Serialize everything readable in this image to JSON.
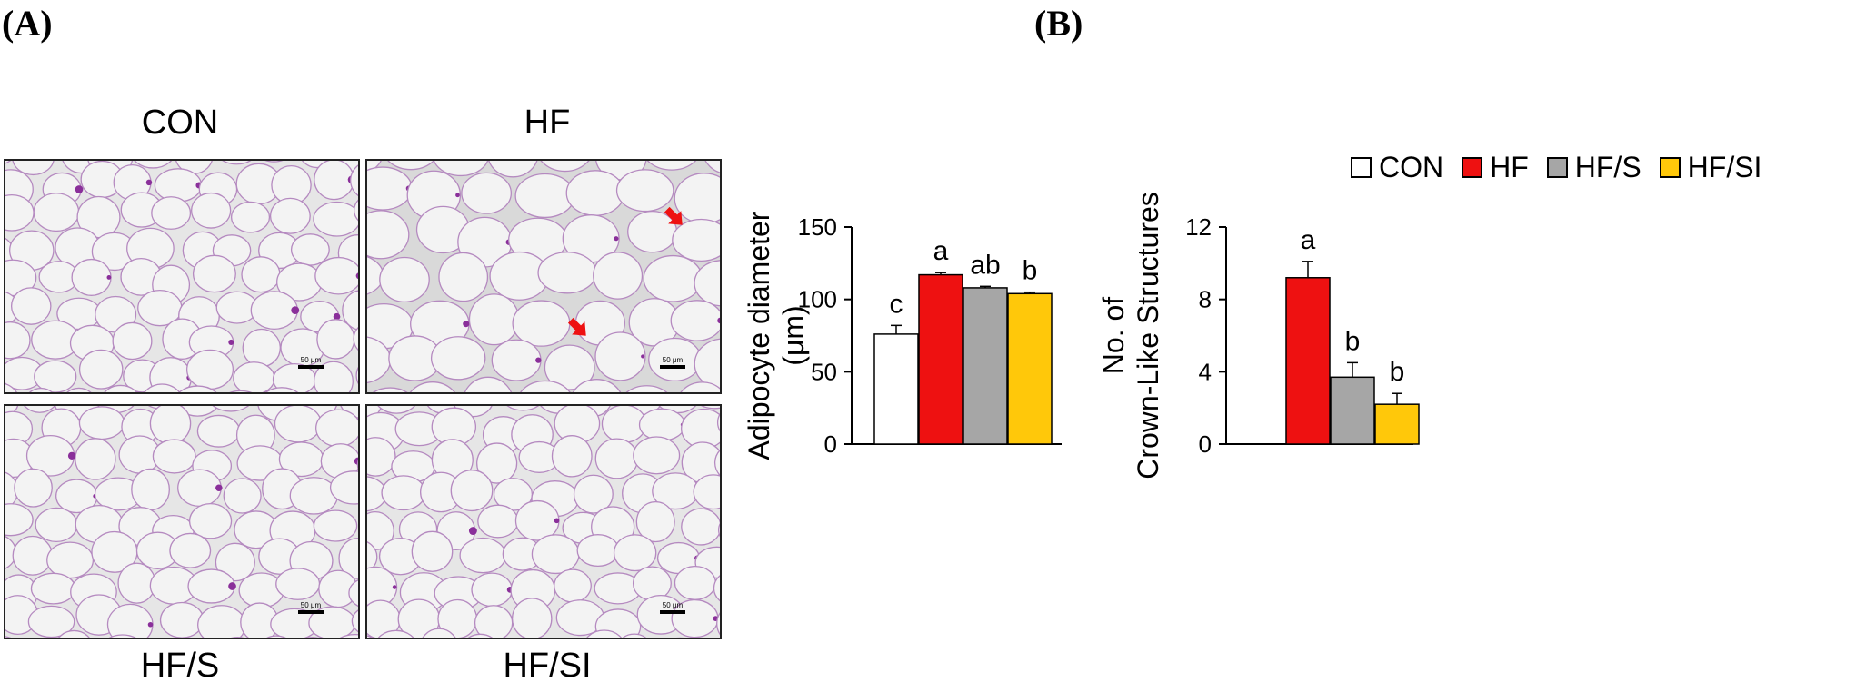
{
  "panels": {
    "a_label": "(A)",
    "b_label": "(B)"
  },
  "micrographs": [
    {
      "title": "CON",
      "scale": "50 μm"
    },
    {
      "title": "HF",
      "scale": "50 μm"
    },
    {
      "title": "HF/S",
      "scale": "50 μm"
    },
    {
      "title": "HF/SI",
      "scale": "50 μm"
    }
  ],
  "legend": [
    {
      "label": "CON",
      "color": "#ffffff"
    },
    {
      "label": "HF",
      "color": "#ee1111"
    },
    {
      "label": "HF/S",
      "color": "#a6a6a6"
    },
    {
      "label": "HF/SI",
      "color": "#ffc80a"
    }
  ],
  "chart_data": [
    {
      "type": "bar",
      "categories": [
        "CON",
        "HF",
        "HF/S",
        "HF/SI"
      ],
      "values": [
        76,
        117,
        108,
        104
      ],
      "errors": [
        6,
        1.5,
        1,
        1
      ],
      "letters": [
        "c",
        "a",
        "ab",
        "b"
      ],
      "colors": [
        "#ffffff",
        "#ee1111",
        "#a6a6a6",
        "#ffc80a"
      ],
      "ylabel_lines": [
        "Adipocyte diameter",
        "(μm)"
      ],
      "ylim": [
        0,
        150
      ],
      "yticks": [
        "0",
        "50",
        "100",
        "150"
      ]
    },
    {
      "type": "bar",
      "categories": [
        "CON",
        "HF",
        "HF/S",
        "HF/SI"
      ],
      "values": [
        0,
        9.2,
        3.7,
        2.2
      ],
      "errors": [
        0,
        0.9,
        0.8,
        0.6
      ],
      "letters": [
        "",
        "a",
        "b",
        "b"
      ],
      "colors": [
        "#ffffff",
        "#ee1111",
        "#a6a6a6",
        "#ffc80a"
      ],
      "ylabel_lines": [
        "No. of",
        "Crown-Like Structures"
      ],
      "ylim": [
        0,
        12
      ],
      "yticks": [
        "0",
        "4",
        "8",
        "12"
      ]
    }
  ]
}
